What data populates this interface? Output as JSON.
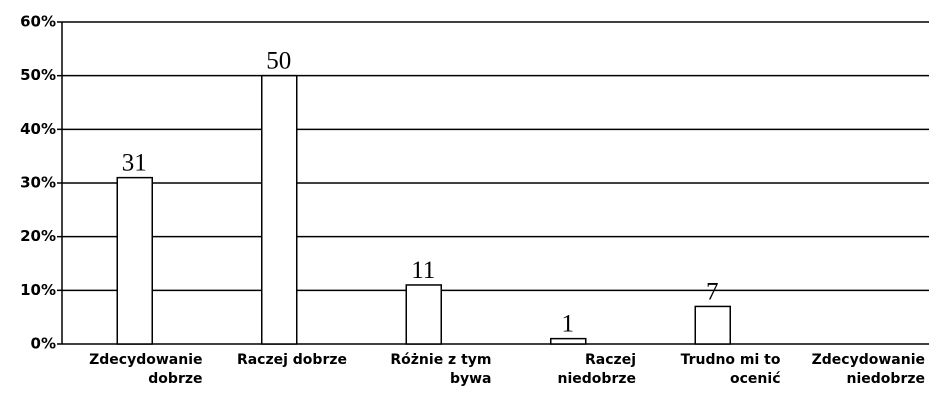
{
  "chart_data": {
    "type": "bar",
    "categories": [
      "Zdecydowanie\ndobrze",
      "Raczej dobrze",
      "Różnie z tym\nbywa",
      "Raczej\nniedobrze",
      "Trudno mi to\nocenić",
      "Zdecydowanie\nniedobrze"
    ],
    "values": [
      31,
      50,
      11,
      1,
      7,
      null
    ],
    "color": "#ffffff",
    "ylim": [
      0,
      60
    ],
    "yticks": [
      {
        "value": 0,
        "label": "0%"
      },
      {
        "value": 10,
        "label": "10%"
      },
      {
        "value": 20,
        "label": "20%"
      },
      {
        "value": 30,
        "label": "30%"
      },
      {
        "value": 40,
        "label": "40%"
      },
      {
        "value": 50,
        "label": "50%"
      },
      {
        "value": 60,
        "label": "60%"
      }
    ],
    "grid": true
  }
}
